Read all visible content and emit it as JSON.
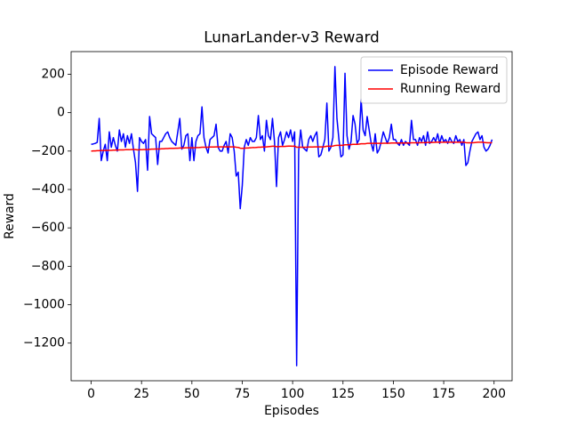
{
  "chart_data": {
    "type": "line",
    "title": "LunarLander-v3 Reward",
    "xlabel": "Episodes",
    "ylabel": "Reward",
    "x": [
      0,
      1,
      2,
      3,
      4,
      5,
      6,
      7,
      8,
      9,
      10,
      11,
      12,
      13,
      14,
      15,
      16,
      17,
      18,
      19,
      20,
      21,
      22,
      23,
      24,
      25,
      26,
      27,
      28,
      29,
      30,
      31,
      32,
      33,
      34,
      35,
      36,
      37,
      38,
      39,
      40,
      41,
      42,
      43,
      44,
      45,
      46,
      47,
      48,
      49,
      50,
      51,
      52,
      53,
      54,
      55,
      56,
      57,
      58,
      59,
      60,
      61,
      62,
      63,
      64,
      65,
      66,
      67,
      68,
      69,
      70,
      71,
      72,
      73,
      74,
      75,
      76,
      77,
      78,
      79,
      80,
      81,
      82,
      83,
      84,
      85,
      86,
      87,
      88,
      89,
      90,
      91,
      92,
      93,
      94,
      95,
      96,
      97,
      98,
      99,
      100,
      101,
      102,
      103,
      104,
      105,
      106,
      107,
      108,
      109,
      110,
      111,
      112,
      113,
      114,
      115,
      116,
      117,
      118,
      119,
      120,
      121,
      122,
      123,
      124,
      125,
      126,
      127,
      128,
      129,
      130,
      131,
      132,
      133,
      134,
      135,
      136,
      137,
      138,
      139,
      140,
      141,
      142,
      143,
      144,
      145,
      146,
      147,
      148,
      149,
      150,
      151,
      152,
      153,
      154,
      155,
      156,
      157,
      158,
      159,
      160,
      161,
      162,
      163,
      164,
      165,
      166,
      167,
      168,
      169,
      170,
      171,
      172,
      173,
      174,
      175,
      176,
      177,
      178,
      179,
      180,
      181,
      182,
      183,
      184,
      185,
      186,
      187,
      188,
      189,
      190,
      191,
      192,
      193,
      194,
      195,
      196,
      197,
      198,
      199
    ],
    "series": [
      {
        "name": "Episode Reward",
        "color": "#0000ff",
        "values": [
          -165,
          -163,
          -160,
          -155,
          -30,
          -250,
          -200,
          -165,
          -250,
          -100,
          -180,
          -130,
          -170,
          -200,
          -90,
          -150,
          -110,
          -180,
          -120,
          -160,
          -110,
          -190,
          -260,
          -410,
          -130,
          -150,
          -160,
          -140,
          -300,
          -20,
          -110,
          -120,
          -130,
          -270,
          -150,
          -150,
          -130,
          -110,
          -100,
          -130,
          -150,
          -160,
          -170,
          -100,
          -30,
          -190,
          -170,
          -120,
          -110,
          -250,
          -130,
          -250,
          -150,
          -120,
          -110,
          30,
          -130,
          -180,
          -210,
          -140,
          -130,
          -120,
          -60,
          -180,
          -200,
          -200,
          -170,
          -150,
          -210,
          -110,
          -130,
          -200,
          -330,
          -310,
          -500,
          -380,
          -180,
          -140,
          -170,
          -130,
          -150,
          -150,
          -130,
          -15,
          -140,
          -120,
          -200,
          -40,
          -120,
          -140,
          -30,
          -150,
          -385,
          -130,
          -100,
          -170,
          -140,
          -100,
          -130,
          -90,
          -150,
          -100,
          -1318,
          -200,
          -90,
          -180,
          -190,
          -200,
          -140,
          -120,
          -150,
          -120,
          -100,
          -230,
          -220,
          -180,
          -140,
          50,
          -200,
          -180,
          -130,
          240,
          -30,
          -140,
          -230,
          -220,
          205,
          -120,
          -190,
          -150,
          -15,
          -60,
          -160,
          -140,
          70,
          -90,
          -120,
          -20,
          -90,
          -160,
          -200,
          -110,
          -210,
          -190,
          -150,
          -100,
          -130,
          -160,
          -130,
          -60,
          -140,
          -140,
          -160,
          -170,
          -140,
          -170,
          -150,
          -160,
          -170,
          -40,
          -140,
          -140,
          -170,
          -130,
          -150,
          -120,
          -170,
          -100,
          -160,
          -150,
          -130,
          -150,
          -110,
          -160,
          -120,
          -150,
          -140,
          -160,
          -130,
          -150,
          -160,
          -120,
          -150,
          -140,
          -170,
          -140,
          -275,
          -260,
          -200,
          -150,
          -130,
          -110,
          -100,
          -140,
          -120,
          -180,
          -200,
          -190,
          -170,
          -140
        ]
      },
      {
        "name": "Running Reward",
        "color": "#ff0000",
        "values": [
          -200,
          -199,
          -199,
          -198,
          -198,
          -197,
          -197,
          -197,
          -196,
          -196,
          -196,
          -195,
          -195,
          -195,
          -194,
          -194,
          -194,
          -193,
          -193,
          -193,
          -192,
          -192,
          -192,
          -194,
          -193,
          -193,
          -192,
          -192,
          -192,
          -191,
          -190,
          -190,
          -189,
          -189,
          -189,
          -188,
          -188,
          -187,
          -187,
          -186,
          -186,
          -186,
          -185,
          -185,
          -184,
          -184,
          -184,
          -183,
          -183,
          -183,
          -183,
          -183,
          -182,
          -182,
          -181,
          -180,
          -180,
          -180,
          -180,
          -179,
          -179,
          -179,
          -178,
          -178,
          -178,
          -178,
          -178,
          -178,
          -178,
          -178,
          -178,
          -178,
          -180,
          -181,
          -185,
          -186,
          -185,
          -184,
          -184,
          -183,
          -182,
          -182,
          -181,
          -180,
          -180,
          -179,
          -179,
          -178,
          -177,
          -176,
          -175,
          -175,
          -177,
          -177,
          -176,
          -176,
          -176,
          -175,
          -174,
          -174,
          -175,
          -174,
          -180,
          -180,
          -180,
          -180,
          -180,
          -180,
          -179,
          -179,
          -179,
          -178,
          -178,
          -178,
          -178,
          -178,
          -177,
          -175,
          -175,
          -175,
          -174,
          -171,
          -170,
          -170,
          -170,
          -170,
          -167,
          -167,
          -167,
          -166,
          -165,
          -165,
          -165,
          -164,
          -162,
          -162,
          -162,
          -160,
          -160,
          -160,
          -160,
          -160,
          -160,
          -160,
          -160,
          -159,
          -159,
          -159,
          -159,
          -158,
          -158,
          -158,
          -158,
          -158,
          -158,
          -158,
          -158,
          -158,
          -158,
          -157,
          -157,
          -157,
          -157,
          -157,
          -156,
          -156,
          -156,
          -155,
          -155,
          -155,
          -155,
          -154,
          -154,
          -154,
          -154,
          -154,
          -154,
          -154,
          -154,
          -154,
          -154,
          -154,
          -154,
          -154,
          -154,
          -154,
          -156,
          -157,
          -157,
          -157,
          -156,
          -155,
          -154,
          -154,
          -154,
          -155,
          -156,
          -157,
          -157,
          -156
        ]
      }
    ],
    "xlim": [
      -9.95,
      208.95
    ],
    "xticks": [
      0,
      25,
      50,
      75,
      100,
      125,
      150,
      175,
      200
    ],
    "ylim": [
      -1396,
      318
    ],
    "yticks": [
      {
        "value": -1200,
        "label": "−1200"
      },
      {
        "value": -1000,
        "label": "−1000"
      },
      {
        "value": -800,
        "label": "−800"
      },
      {
        "value": -600,
        "label": "−600"
      },
      {
        "value": -400,
        "label": "−400"
      },
      {
        "value": -200,
        "label": "−200"
      },
      0,
      200
    ],
    "legend": "upper right",
    "grid": false
  }
}
